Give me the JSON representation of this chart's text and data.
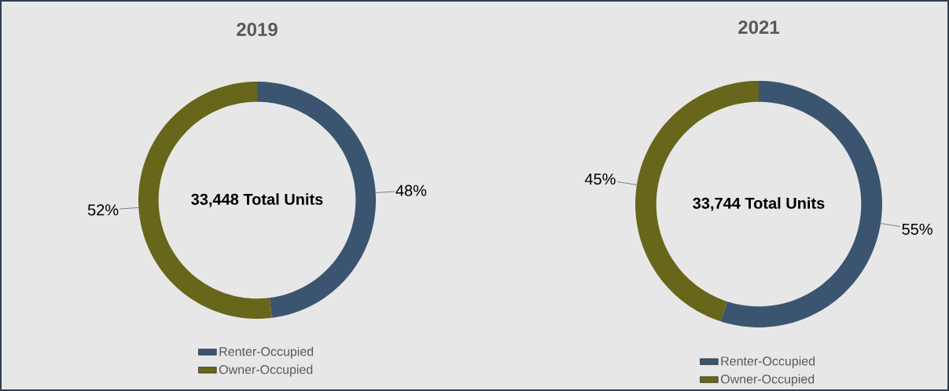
{
  "chart_data": [
    {
      "type": "donut",
      "title": "2019",
      "categories": [
        "Renter-Occupied",
        "Owner-Occupied"
      ],
      "values": [
        48,
        52
      ],
      "colors": [
        "#3b5570",
        "#67661a"
      ],
      "value_labels": [
        "48%",
        "52%"
      ],
      "annotations": [
        "33,448 Total Units"
      ],
      "legend": "bottom"
    },
    {
      "type": "donut",
      "title": "2021",
      "categories": [
        "Renter-Occupied",
        "Owner-Occupied"
      ],
      "values": [
        55,
        45
      ],
      "colors": [
        "#3b5570",
        "#67661a"
      ],
      "value_labels": [
        "55%",
        "45%"
      ],
      "annotations": [
        "33,744 Total Units"
      ],
      "legend": "bottom"
    }
  ]
}
